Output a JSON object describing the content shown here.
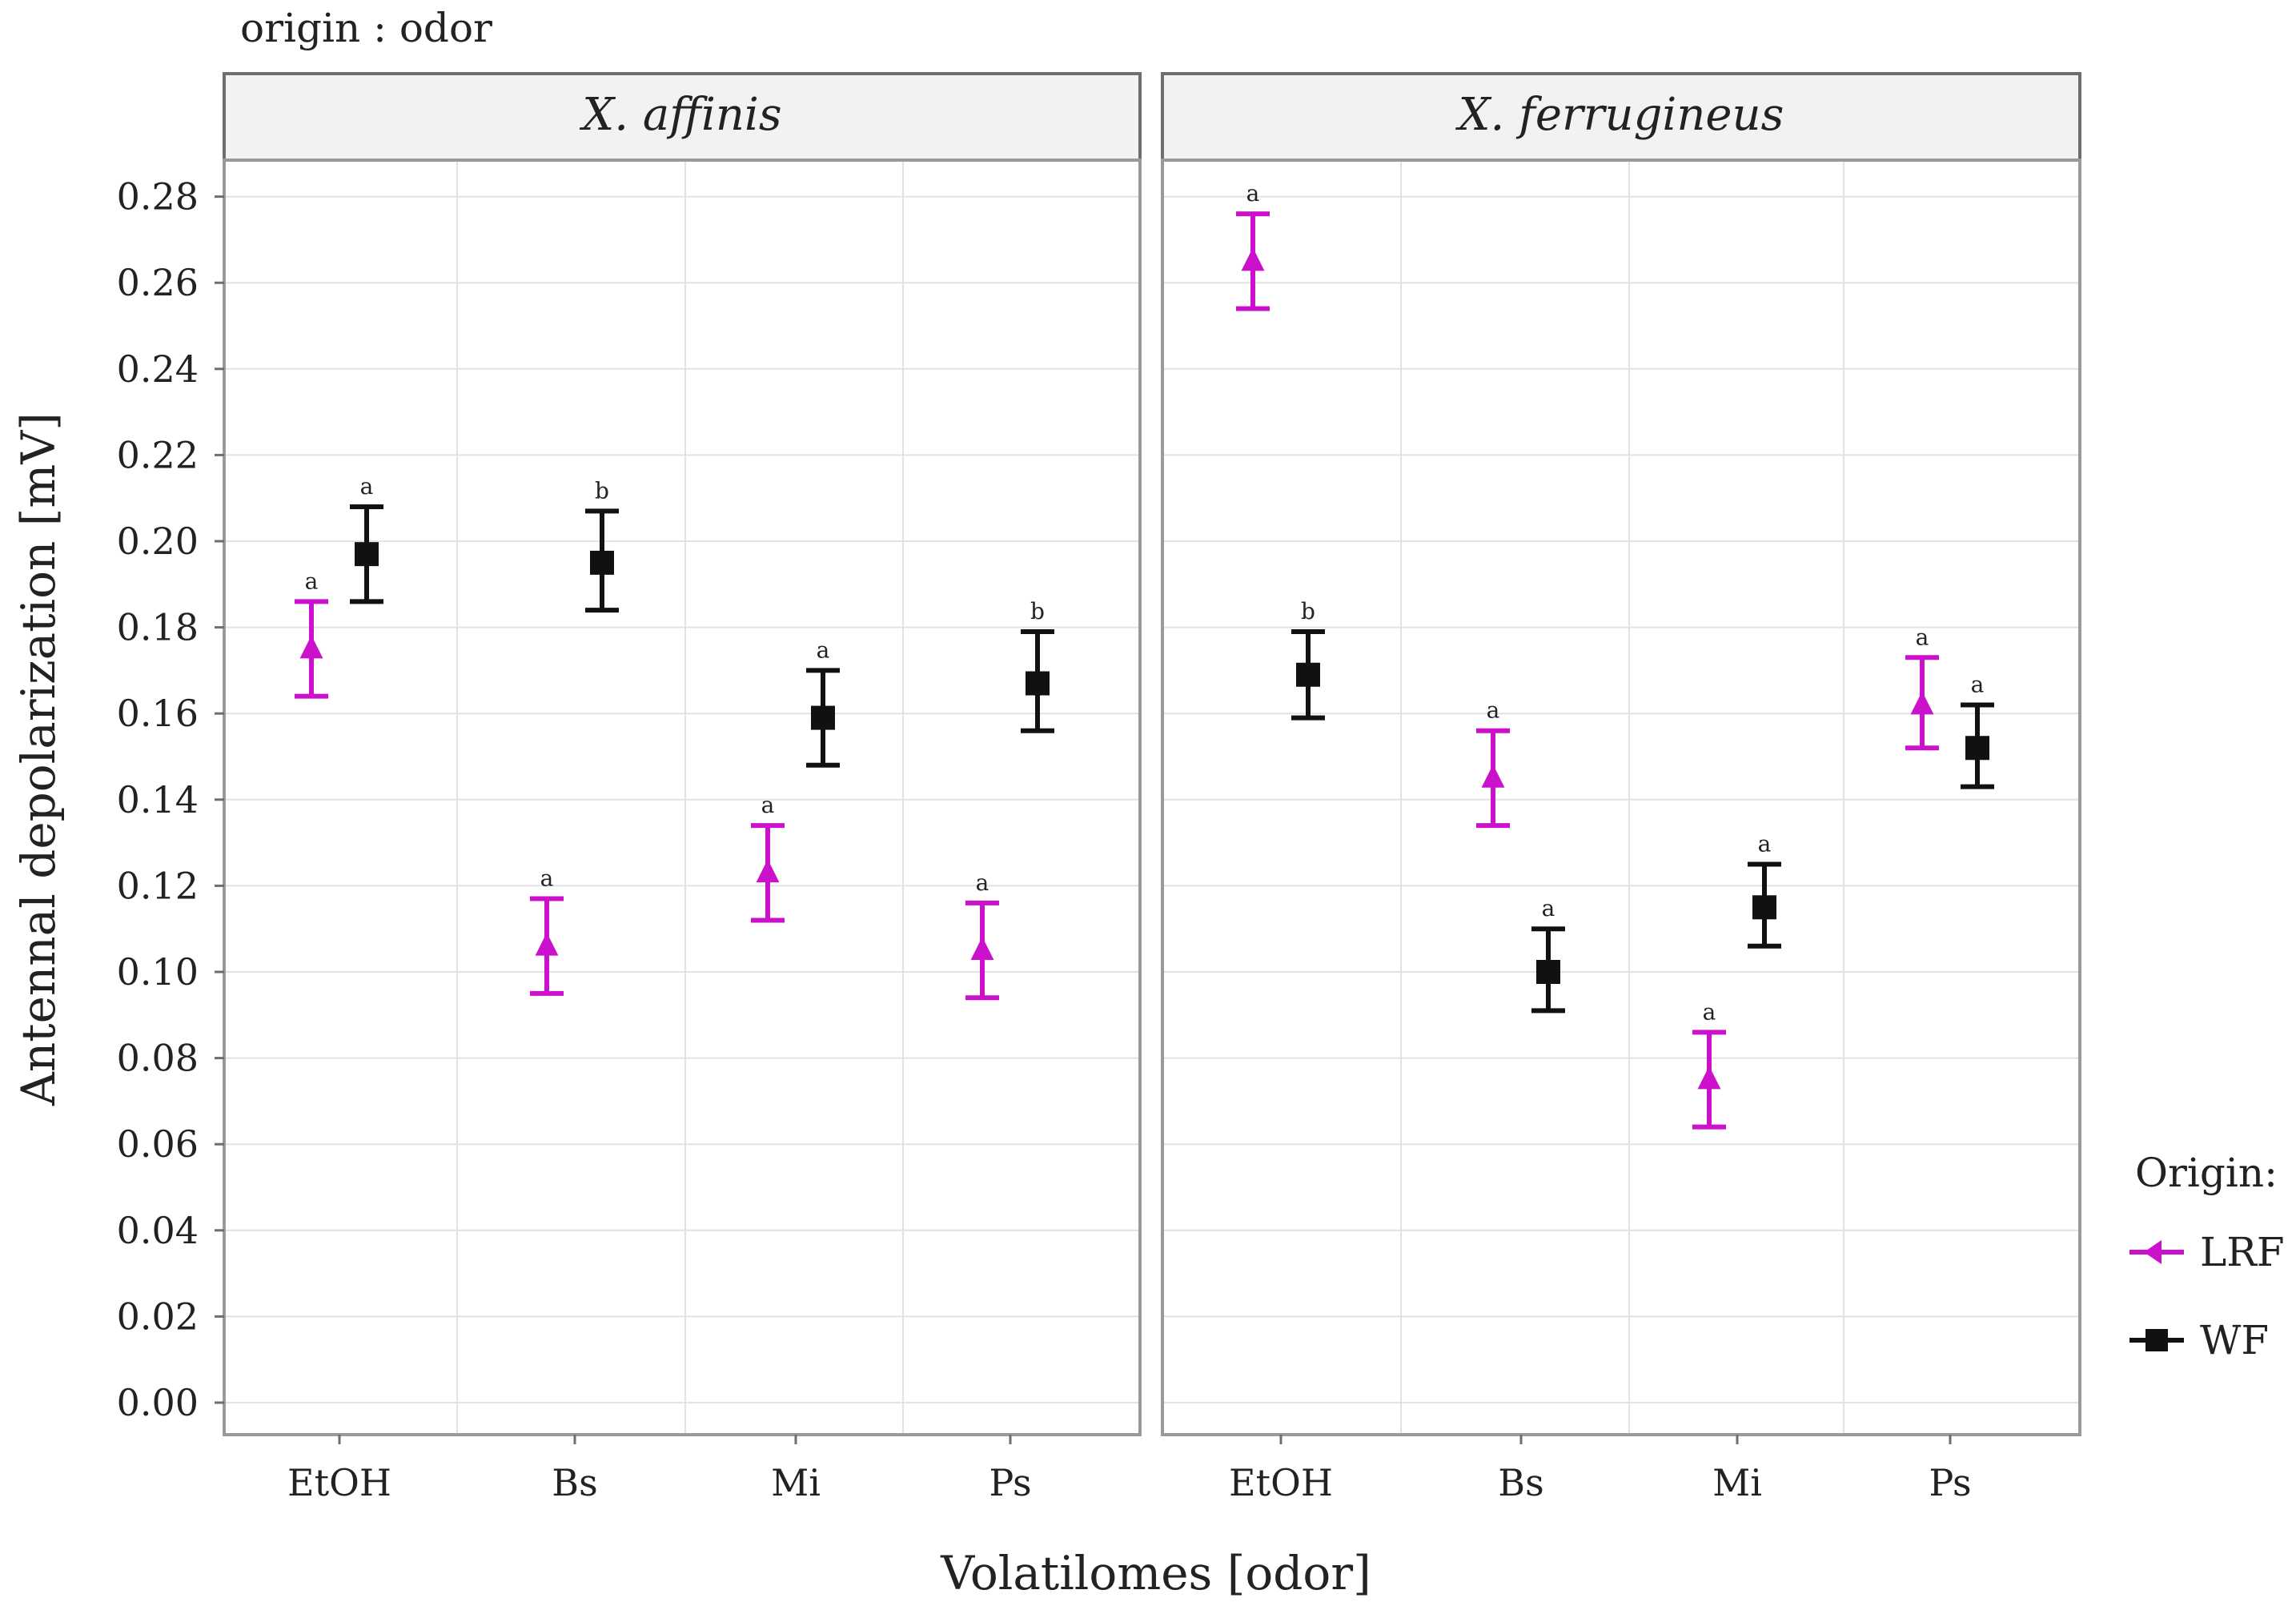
{
  "chart_data": {
    "type": "scatter",
    "subtitle": "origin : odor",
    "xlabel": "Volatilomes [odor]",
    "ylabel": "Antennal depolarization [mV]",
    "ylim": [
      0.0,
      0.28
    ],
    "yticks": [
      "0.00",
      "0.02",
      "0.04",
      "0.06",
      "0.08",
      "0.10",
      "0.12",
      "0.14",
      "0.16",
      "0.18",
      "0.20",
      "0.22",
      "0.24",
      "0.26",
      "0.28"
    ],
    "categories": [
      "EtOH",
      "Bs",
      "Mi",
      "Ps"
    ],
    "grid": true,
    "legend": {
      "title": "Origin:",
      "position": "right",
      "entries": [
        {
          "name": "LRF",
          "color": "#cc11cc",
          "marker": "triangle"
        },
        {
          "name": "WF",
          "color": "#111111",
          "marker": "square"
        }
      ]
    },
    "panels": [
      {
        "title": "X. affinis",
        "series": [
          {
            "name": "LRF",
            "means": [
              0.175,
              0.106,
              0.123,
              0.105
            ],
            "lower": [
              0.164,
              0.095,
              0.112,
              0.094
            ],
            "upper": [
              0.186,
              0.117,
              0.134,
              0.116
            ],
            "letters": [
              "a",
              "a",
              "a",
              "a"
            ]
          },
          {
            "name": "WF",
            "means": [
              0.197,
              0.195,
              0.159,
              0.167
            ],
            "lower": [
              0.186,
              0.184,
              0.148,
              0.156
            ],
            "upper": [
              0.208,
              0.207,
              0.17,
              0.179
            ],
            "letters": [
              "a",
              "b",
              "a",
              "b"
            ]
          }
        ]
      },
      {
        "title": "X. ferrugineus",
        "series": [
          {
            "name": "LRF",
            "means": [
              0.265,
              0.145,
              0.075,
              0.162
            ],
            "lower": [
              0.254,
              0.134,
              0.064,
              0.152
            ],
            "upper": [
              0.276,
              0.156,
              0.086,
              0.173
            ],
            "letters": [
              "a",
              "a",
              "a",
              "a"
            ]
          },
          {
            "name": "WF",
            "means": [
              0.169,
              0.1,
              0.115,
              0.152
            ],
            "lower": [
              0.159,
              0.091,
              0.106,
              0.143
            ],
            "upper": [
              0.179,
              0.11,
              0.125,
              0.162
            ],
            "letters": [
              "b",
              "a",
              "a",
              "a"
            ]
          }
        ]
      }
    ]
  }
}
